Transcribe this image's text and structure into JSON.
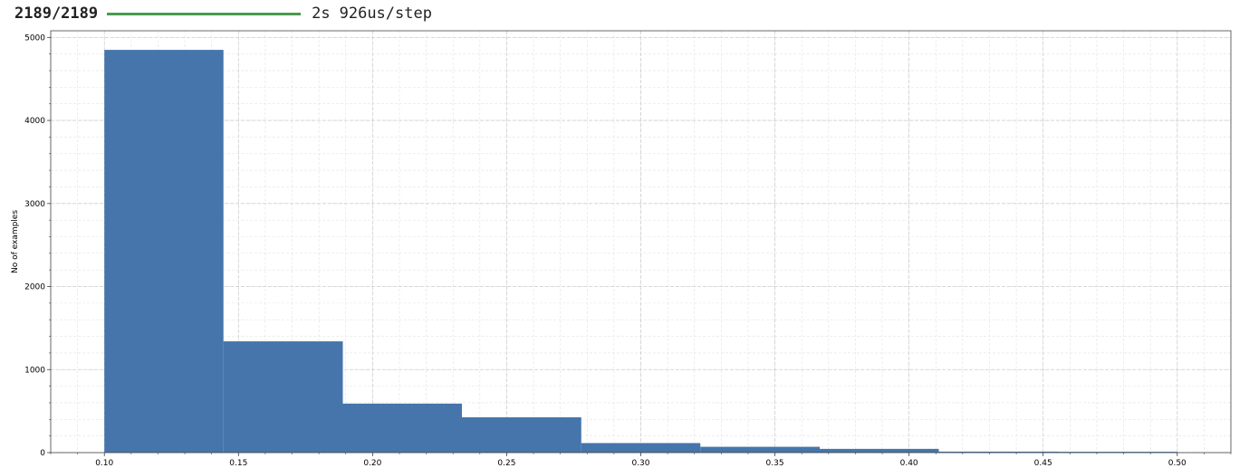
{
  "progress": {
    "count": "2189/2189",
    "fraction": 1.0,
    "color": "#4a9a4f",
    "time": "2s",
    "rate": "926us/step"
  },
  "chart_data": {
    "type": "bar",
    "title": "",
    "xlabel": "",
    "ylabel": "No of examples",
    "bar_color": "#4575ab",
    "bin_edges": [
      0.1,
      0.1444,
      0.1889,
      0.2333,
      0.2778,
      0.3222,
      0.3667,
      0.4111,
      0.4556,
      0.5
    ],
    "values": [
      4850,
      1340,
      590,
      425,
      115,
      70,
      45,
      12,
      10
    ],
    "xlim": [
      0.08,
      0.52
    ],
    "ylim": [
      0,
      5080
    ],
    "xticks": [
      0.1,
      0.15,
      0.2,
      0.25,
      0.3,
      0.35,
      0.4,
      0.45,
      0.5
    ],
    "xtick_labels": [
      "0.10",
      "0.15",
      "0.20",
      "0.25",
      "0.30",
      "0.35",
      "0.40",
      "0.45",
      "0.50"
    ],
    "yticks": [
      0,
      1000,
      2000,
      3000,
      4000,
      5000
    ],
    "ytick_labels": [
      "0",
      "1000",
      "2000",
      "3000",
      "4000",
      "5000"
    ],
    "grid": true,
    "minor_grid": true
  }
}
